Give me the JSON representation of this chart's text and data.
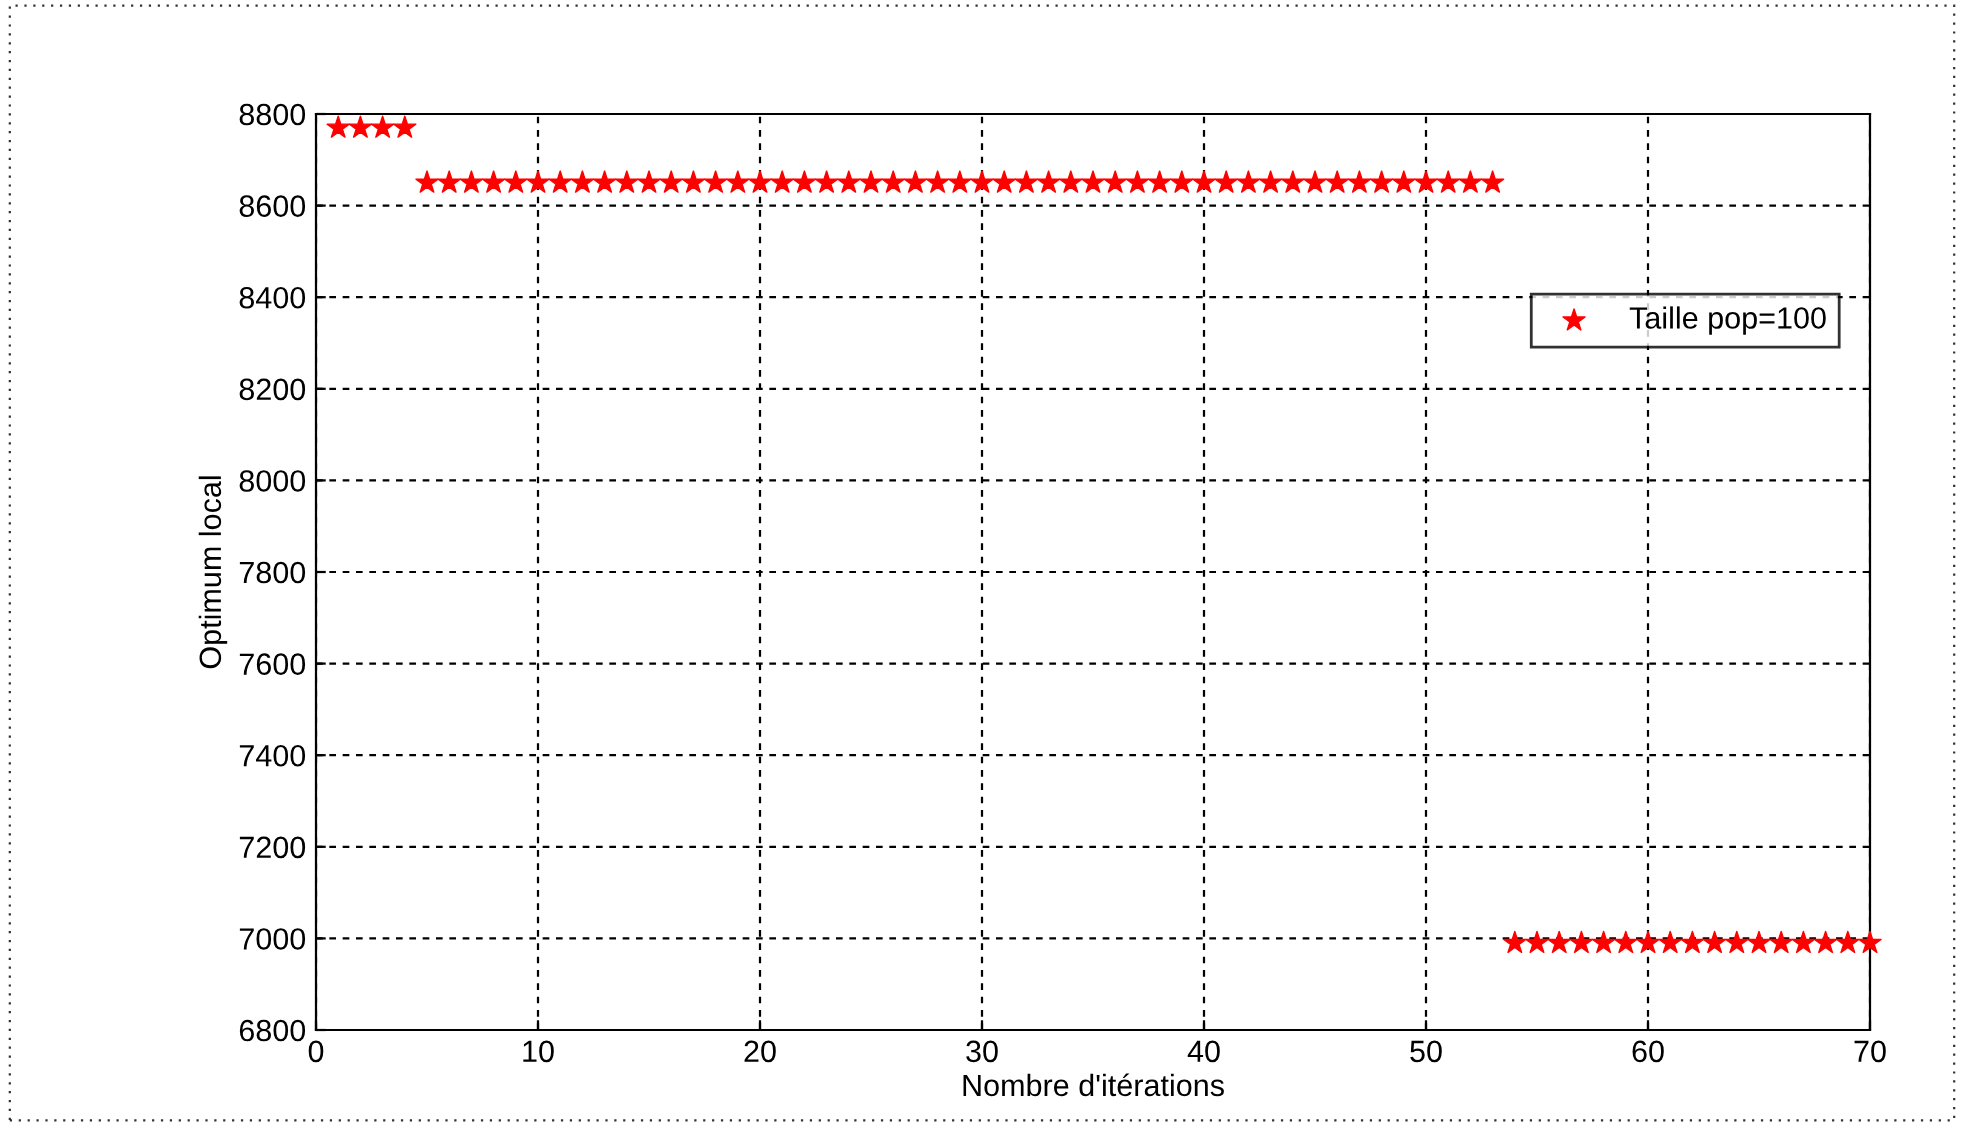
{
  "chart_data": {
    "type": "scatter",
    "xlabel": "Nombre d'itérations",
    "ylabel": "Optimum local",
    "x": [
      1,
      2,
      3,
      4,
      5,
      6,
      7,
      8,
      9,
      10,
      11,
      12,
      13,
      14,
      15,
      16,
      17,
      18,
      19,
      20,
      21,
      22,
      23,
      24,
      25,
      26,
      27,
      28,
      29,
      30,
      31,
      32,
      33,
      34,
      35,
      36,
      37,
      38,
      39,
      40,
      41,
      42,
      43,
      44,
      45,
      46,
      47,
      48,
      49,
      50,
      51,
      52,
      53,
      54,
      55,
      56,
      57,
      58,
      59,
      60,
      61,
      62,
      63,
      64,
      65,
      66,
      67,
      68,
      69,
      70
    ],
    "series": [
      {
        "name": "Taille pop=100",
        "color": "#ff0000",
        "values": [
          8770,
          8770,
          8770,
          8770,
          8650,
          8650,
          8650,
          8650,
          8650,
          8650,
          8650,
          8650,
          8650,
          8650,
          8650,
          8650,
          8650,
          8650,
          8650,
          8650,
          8650,
          8650,
          8650,
          8650,
          8650,
          8650,
          8650,
          8650,
          8650,
          8650,
          8650,
          8650,
          8650,
          8650,
          8650,
          8650,
          8650,
          8650,
          8650,
          8650,
          8650,
          8650,
          8650,
          8650,
          8650,
          8650,
          8650,
          8650,
          8650,
          8650,
          8650,
          8650,
          8650,
          6990,
          6990,
          6990,
          6990,
          6990,
          6990,
          6990,
          6990,
          6990,
          6990,
          6990,
          6990,
          6990,
          6990,
          6990,
          6990,
          6990
        ]
      }
    ],
    "xlim": [
      0,
      70
    ],
    "xticks": [
      0,
      10,
      20,
      30,
      40,
      50,
      60,
      70
    ],
    "ylim": [
      6800,
      8800
    ],
    "yticks": [
      6800,
      7000,
      7200,
      7400,
      7600,
      7800,
      8000,
      8200,
      8400,
      8600,
      8800
    ],
    "grid": true,
    "legend": "top right",
    "marker": "star"
  }
}
